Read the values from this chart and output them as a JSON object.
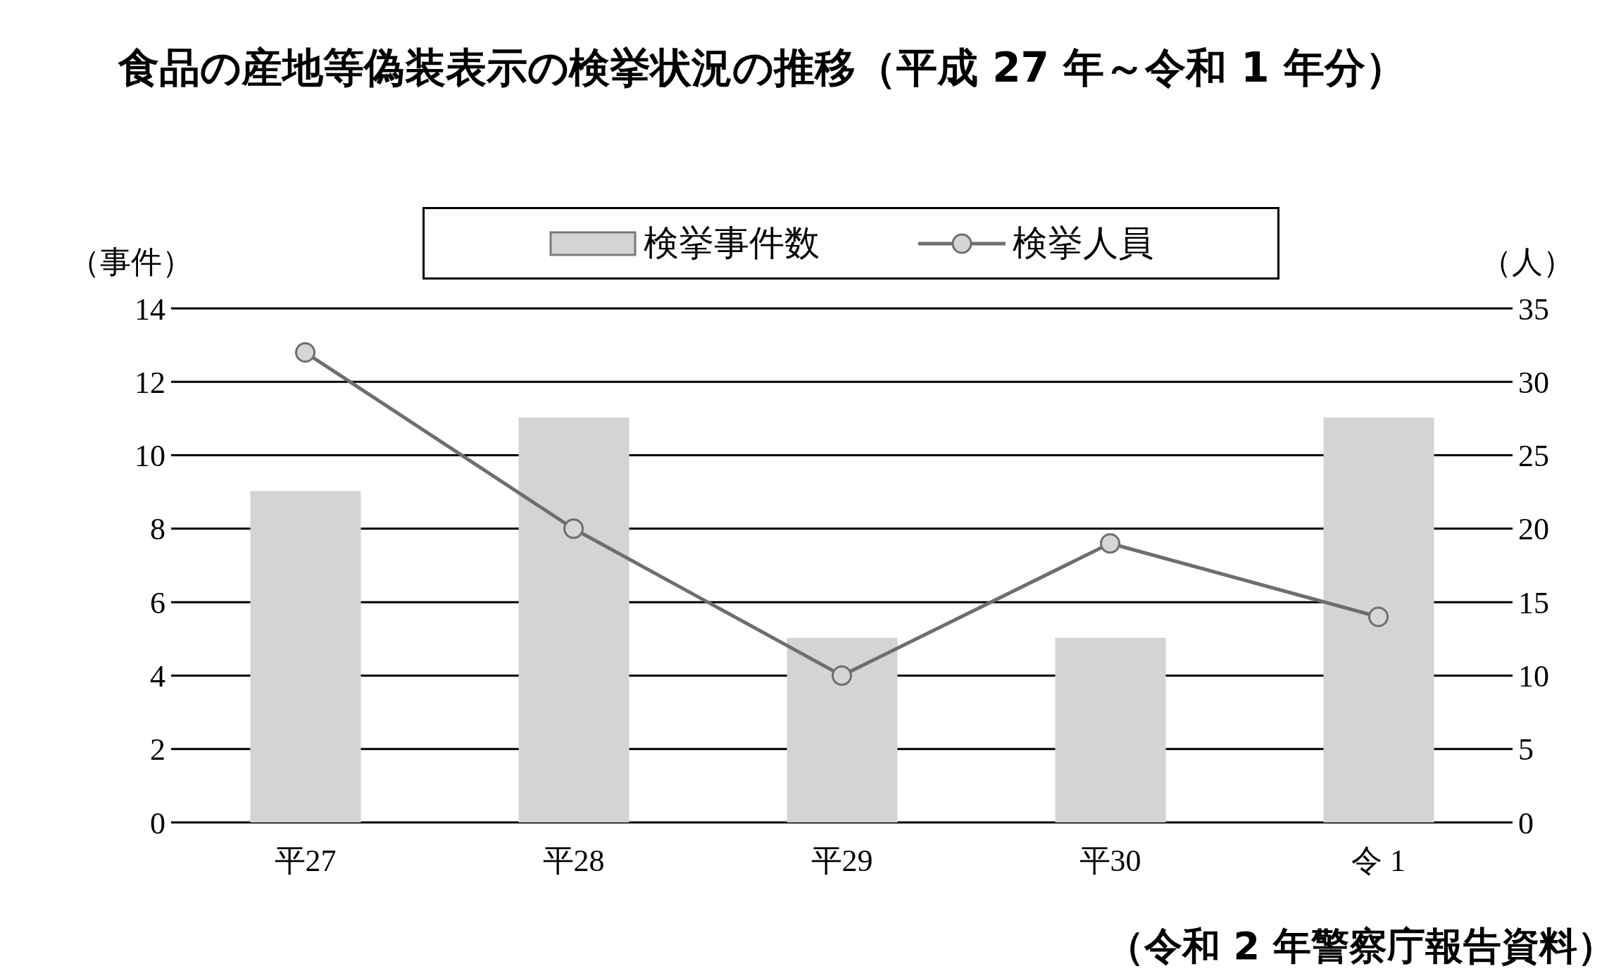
{
  "chart_data": {
    "type": "bar",
    "title": "食品の産地等偽装表示の検挙状況の推移（平成 27 年～令和 1 年分）",
    "ylabel": "（事件）",
    "y2label": "（人）",
    "categories": [
      "平27",
      "平28",
      "平29",
      "平30",
      "令 1"
    ],
    "series": [
      {
        "name": "検挙事件数",
        "color": "#d4d4d4",
        "values": [
          9,
          11,
          5,
          5,
          11
        ]
      },
      {
        "name": "検挙人員",
        "type": "line",
        "axis": "y2",
        "color": "#6e6e6e",
        "values": [
          32,
          20,
          10,
          19,
          14
        ],
        "marker": "circle"
      }
    ],
    "ylim": [
      0,
      14
    ],
    "yticks": [
      0,
      2,
      4,
      6,
      8,
      10,
      12,
      14
    ],
    "y2lim": [
      0,
      35
    ],
    "y2ticks": [
      0,
      5,
      10,
      15,
      20,
      25,
      30,
      35
    ],
    "grid": "y",
    "legend": "top",
    "annotations": [
      "（令和 2 年警察庁報告資料）"
    ]
  }
}
